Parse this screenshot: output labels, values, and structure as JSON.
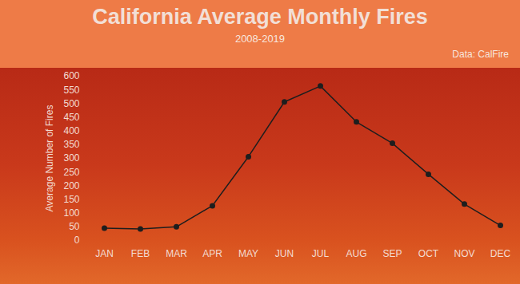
{
  "chart_data": {
    "type": "line",
    "title": "California Average Monthly Fires",
    "subtitle": "2008-2019",
    "caption": "Data: CalFire",
    "y_label": "Average Number of Fires",
    "categories": [
      "JAN",
      "FEB",
      "MAR",
      "APR",
      "MAY",
      "JUN",
      "JUL",
      "AUG",
      "SEP",
      "OCT",
      "NOV",
      "DEC"
    ],
    "values": [
      45,
      42,
      50,
      127,
      306,
      506,
      564,
      433,
      355,
      242,
      133,
      55
    ],
    "color": "#1e1e1e",
    "marker": "circle",
    "ylim": [
      0,
      600
    ],
    "yticks": [
      0,
      50,
      100,
      150,
      200,
      250,
      300,
      350,
      400,
      450,
      500,
      550,
      600
    ],
    "grid": false
  }
}
